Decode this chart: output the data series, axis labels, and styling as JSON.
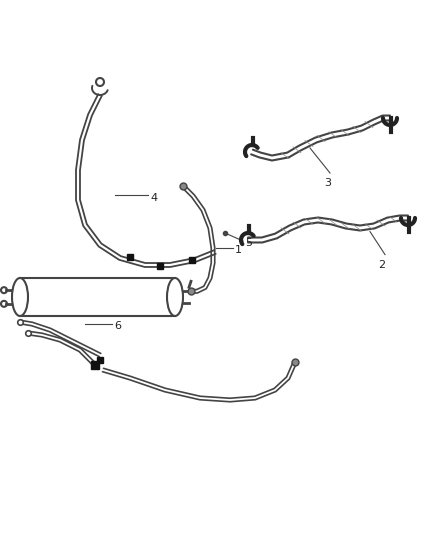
{
  "background_color": "#ffffff",
  "line_color": "#444444",
  "label_color": "#222222",
  "fig_width": 4.38,
  "fig_height": 5.33,
  "dpi": 100,
  "lw_hose": 1.4,
  "lw_hose2": 2.2,
  "lw_thin": 0.8
}
